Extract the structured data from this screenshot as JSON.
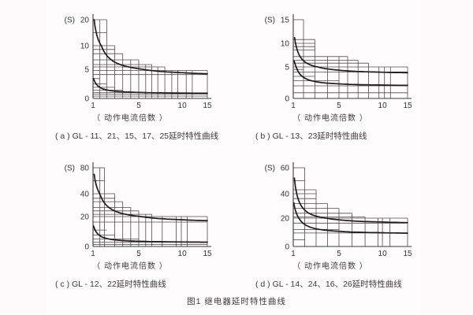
{
  "figure_caption": "图1  继电器延时特性曲线",
  "xlabel": "（ 动作电流倍数 ）",
  "unit_label": "(S)",
  "colors": {
    "background": "#fdfafb",
    "grid_line": "#4d4d4d",
    "axis_line": "#3a3a3a",
    "curve": "#1c1c1c",
    "text": "#3b3b3b"
  },
  "chart_data": [
    {
      "type": "line",
      "panel_label": "a",
      "caption": "( a ) GL - 11、21、15、17、25延时特性曲线",
      "xlabel": "（ 动作电流倍数 ）",
      "ylabel": "(S)",
      "x_axis": {
        "min": 1,
        "max": 15,
        "ticks": [
          {
            "v": 1,
            "f": 0,
            "label": "1"
          },
          {
            "v": 5,
            "f": 0.4,
            "label": "5"
          },
          {
            "v": 10,
            "f": 0.78,
            "label": "10"
          },
          {
            "v": 15,
            "f": 1.0,
            "label": "15"
          }
        ]
      },
      "y_axis": {
        "min": 0,
        "max": 20,
        "ticks": [
          {
            "v": 0,
            "f": 0,
            "label": "0"
          },
          {
            "v": 5,
            "f": 0.37,
            "label": "5"
          },
          {
            "v": 10,
            "f": 0.67,
            "label": "10"
          },
          {
            "v": 20,
            "f": 1.0,
            "label": "20"
          }
        ]
      },
      "h_lines": [
        [
          20,
          2.2
        ],
        [
          15,
          2.2
        ],
        [
          10,
          2.9
        ],
        [
          9.2,
          2.9
        ],
        [
          8.3,
          3.6
        ],
        [
          7,
          5
        ],
        [
          6,
          6.5
        ],
        [
          5.5,
          8
        ],
        [
          4.8,
          15
        ],
        [
          4.1,
          15
        ],
        [
          3.4,
          1.6
        ],
        [
          2.5,
          2.2
        ],
        [
          1.9,
          2.9
        ],
        [
          1.4,
          3.6
        ],
        [
          1.0,
          5
        ],
        [
          0.75,
          15
        ],
        [
          0.4,
          15
        ]
      ],
      "v_lines": [
        [
          1.6,
          20
        ],
        [
          2.2,
          20
        ],
        [
          2.9,
          10
        ],
        [
          3.6,
          8.3
        ],
        [
          4.3,
          7
        ],
        [
          5,
          7
        ],
        [
          5.8,
          6
        ],
        [
          6.5,
          6
        ],
        [
          7.2,
          5.5
        ],
        [
          8,
          5.5
        ],
        [
          8.8,
          4.8
        ],
        [
          9.5,
          4.8
        ],
        [
          10.8,
          4.8
        ],
        [
          12,
          4.8
        ],
        [
          15,
          4.8
        ]
      ],
      "curves": [
        {
          "name": "upper-time-limit",
          "start": [
            1.1,
            20
          ],
          "asymptote": 3.95,
          "sample_points": [
            [
              2,
              8.6
            ],
            [
              5,
              5.1
            ],
            [
              10,
              4.4
            ],
            [
              15,
              4.2
            ]
          ]
        },
        {
          "name": "lower-time-limit",
          "start": [
            1.05,
            3.4
          ],
          "asymptote": 0.85,
          "sample_points": [
            [
              2,
              1.5
            ],
            [
              5,
              1.0
            ],
            [
              10,
              0.93
            ],
            [
              15,
              0.9
            ]
          ]
        }
      ]
    },
    {
      "type": "line",
      "panel_label": "b",
      "caption": "( b ) GL - 13、23延时特性曲线",
      "xlabel": "（ 动作电流倍数 ）",
      "ylabel": "(S)",
      "x_axis": {
        "min": 1,
        "max": 15,
        "ticks": [
          {
            "v": 1,
            "f": 0,
            "label": "1"
          },
          {
            "v": 5,
            "f": 0.4,
            "label": "5"
          },
          {
            "v": 10,
            "f": 0.78,
            "label": "10"
          },
          {
            "v": 15,
            "f": 1.0,
            "label": "15"
          }
        ]
      },
      "y_axis": {
        "min": 0,
        "max": 15,
        "ticks": [
          {
            "v": 0,
            "f": 0,
            "label": "0"
          },
          {
            "v": 5,
            "f": 0.4,
            "label": "5"
          },
          {
            "v": 10,
            "f": 0.7,
            "label": "10"
          },
          {
            "v": 15,
            "f": 1.0,
            "label": "15"
          }
        ]
      },
      "h_lines": [
        [
          15,
          1.9
        ],
        [
          10.8,
          2.9
        ],
        [
          10,
          2.9
        ],
        [
          9.3,
          2.9
        ],
        [
          8.6,
          2.9
        ],
        [
          7.2,
          6
        ],
        [
          6.4,
          7.2
        ],
        [
          5.8,
          8.4
        ],
        [
          5,
          15
        ],
        [
          4.2,
          15
        ],
        [
          4.6,
          1.9
        ],
        [
          3.5,
          2.9
        ],
        [
          2.8,
          5
        ],
        [
          2.0,
          15
        ],
        [
          0.9,
          15
        ]
      ],
      "v_lines": [
        [
          1.9,
          15
        ],
        [
          2.9,
          10.8
        ],
        [
          4,
          7.2
        ],
        [
          5,
          7.2
        ],
        [
          6,
          7.2
        ],
        [
          7.2,
          6.4
        ],
        [
          8.4,
          5.8
        ],
        [
          9.6,
          5
        ],
        [
          10.4,
          5
        ],
        [
          11.6,
          5
        ],
        [
          15,
          5
        ]
      ],
      "curves": [
        {
          "name": "upper-time-limit",
          "start": [
            1.12,
            11.2
          ],
          "asymptote": 3.95,
          "sample_points": [
            [
              2,
              6.1
            ],
            [
              5,
              4.5
            ],
            [
              10,
              4.2
            ],
            [
              15,
              4.1
            ]
          ]
        },
        {
          "name": "lower-time-limit",
          "start": [
            1.08,
            6.3
          ],
          "asymptote": 2.0,
          "sample_points": [
            [
              2,
              3.3
            ],
            [
              5,
              2.3
            ],
            [
              10,
              2.1
            ],
            [
              15,
              2.1
            ]
          ]
        }
      ]
    },
    {
      "type": "line",
      "panel_label": "c",
      "caption": "( c ) GL - 12、22延时特性曲线",
      "xlabel": "（ 动作电流倍数 ）",
      "ylabel": "(S)",
      "x_axis": {
        "min": 1,
        "max": 15,
        "ticks": [
          {
            "v": 1,
            "f": 0,
            "label": "1"
          },
          {
            "v": 5,
            "f": 0.4,
            "label": "5"
          },
          {
            "v": 10,
            "f": 0.78,
            "label": "10"
          },
          {
            "v": 15,
            "f": 1.0,
            "label": "15"
          }
        ]
      },
      "y_axis": {
        "min": 0,
        "max": 80,
        "ticks": [
          {
            "v": 0,
            "f": 0,
            "label": "0"
          },
          {
            "v": 20,
            "f": 0.38,
            "label": "20"
          },
          {
            "v": 40,
            "f": 0.67,
            "label": "40"
          },
          {
            "v": 80,
            "f": 1.0,
            "label": "80"
          }
        ]
      },
      "h_lines": [
        [
          80,
          2
        ],
        [
          60,
          2
        ],
        [
          40,
          2.9
        ],
        [
          36,
          2.9
        ],
        [
          33,
          3.6
        ],
        [
          28,
          4.3
        ],
        [
          25,
          5
        ],
        [
          22,
          6.5
        ],
        [
          20,
          15
        ],
        [
          16.3,
          15
        ],
        [
          11,
          2.2
        ],
        [
          7.7,
          2.9
        ],
        [
          5,
          5
        ],
        [
          2.9,
          15
        ],
        [
          1.4,
          15
        ]
      ],
      "v_lines": [
        [
          1.6,
          80
        ],
        [
          2,
          80
        ],
        [
          2.9,
          40
        ],
        [
          3.6,
          33
        ],
        [
          4.3,
          28
        ],
        [
          5,
          25
        ],
        [
          5.8,
          22
        ],
        [
          6.5,
          22
        ],
        [
          7.7,
          20
        ],
        [
          9.3,
          20
        ],
        [
          9.9,
          20
        ],
        [
          11,
          20
        ],
        [
          15,
          20
        ]
      ],
      "curves": [
        {
          "name": "upper-time-limit",
          "start": [
            1.1,
            70
          ],
          "asymptote": 16.3,
          "sample_points": [
            [
              2,
              31.9
            ],
            [
              5,
              20.2
            ],
            [
              10,
              17.9
            ],
            [
              15,
              17.2
            ]
          ]
        },
        {
          "name": "lower-time-limit",
          "start": [
            1.05,
            13.7
          ],
          "asymptote": 2.7,
          "sample_points": [
            [
              2,
              5.8
            ],
            [
              5,
              3.5
            ],
            [
              10,
              3.0
            ],
            [
              15,
              2.9
            ]
          ]
        }
      ]
    },
    {
      "type": "line",
      "panel_label": "d",
      "caption": "( d ) GL - 14、24、16、26延时特性曲线",
      "xlabel": "（ 动作电流倍数 ）",
      "ylabel": "(S)",
      "x_axis": {
        "min": 1,
        "max": 15,
        "ticks": [
          {
            "v": 1,
            "f": 0,
            "label": "1"
          },
          {
            "v": 5,
            "f": 0.4,
            "label": "5"
          },
          {
            "v": 10,
            "f": 0.78,
            "label": "10"
          },
          {
            "v": 15,
            "f": 1.0,
            "label": "15"
          }
        ]
      },
      "y_axis": {
        "min": 0,
        "max": 60,
        "ticks": [
          {
            "v": 0,
            "f": 0,
            "label": "0"
          },
          {
            "v": 20,
            "f": 0.36,
            "label": "20"
          },
          {
            "v": 40,
            "f": 0.67,
            "label": "40"
          },
          {
            "v": 60,
            "f": 1.0,
            "label": "60"
          }
        ]
      },
      "h_lines": [
        [
          60,
          2
        ],
        [
          50,
          2
        ],
        [
          43,
          3
        ],
        [
          40,
          3
        ],
        [
          36,
          3
        ],
        [
          32,
          4
        ],
        [
          28,
          5
        ],
        [
          24,
          6.5
        ],
        [
          21,
          8
        ],
        [
          20,
          15
        ],
        [
          16.5,
          15
        ],
        [
          12,
          5
        ],
        [
          9.5,
          15
        ],
        [
          4.8,
          2
        ]
      ],
      "v_lines": [
        [
          2,
          60
        ],
        [
          3,
          43
        ],
        [
          4,
          32
        ],
        [
          5,
          28
        ],
        [
          6.5,
          24
        ],
        [
          8,
          21
        ],
        [
          9.5,
          20
        ],
        [
          10,
          20
        ],
        [
          11.5,
          20
        ],
        [
          15,
          20
        ]
      ],
      "curves": [
        {
          "name": "upper-time-limit",
          "start": [
            1.1,
            52
          ],
          "asymptote": 16.2,
          "sample_points": [
            [
              2,
              26.6
            ],
            [
              5,
              18.8
            ],
            [
              10,
              17.3
            ],
            [
              15,
              16.8
            ]
          ]
        },
        {
          "name": "lower-time-limit",
          "start": [
            1.05,
            32.5
          ],
          "asymptote": 9.0,
          "sample_points": [
            [
              2,
              15.6
            ],
            [
              5,
              10.7
            ],
            [
              10,
              9.7
            ],
            [
              15,
              9.4
            ]
          ]
        }
      ]
    }
  ]
}
